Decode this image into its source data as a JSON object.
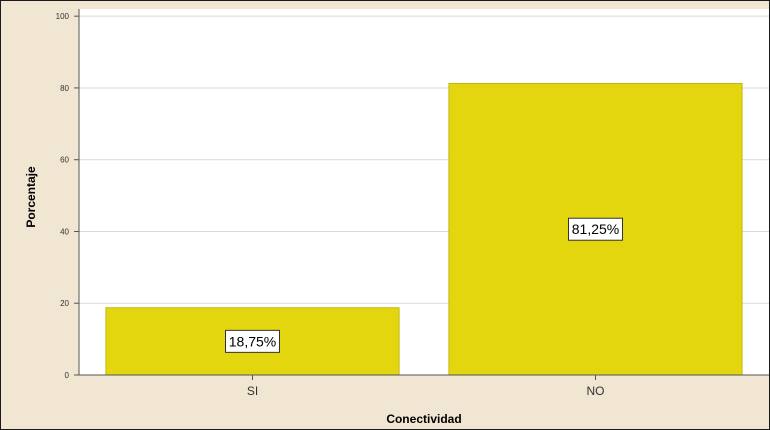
{
  "chart_data": {
    "type": "bar",
    "title": "",
    "xlabel": "Conectividad",
    "ylabel": "Porcentaje",
    "categories": [
      "SI",
      "NO"
    ],
    "values": [
      18.75,
      81.25
    ],
    "data_labels": [
      "18,75%",
      "81,25%"
    ],
    "yticks": [
      0,
      20,
      40,
      60,
      80,
      100
    ],
    "ylim": [
      0,
      102
    ],
    "grid": true,
    "legend": "none"
  },
  "colors": {
    "bar_fill": "#e3d60e",
    "bar_stroke": "#b8ad08",
    "plot_background": "#ffffff",
    "outer_background": "#f0e6d2",
    "gridline": "#d9d9d9",
    "axis_line": "#555555"
  }
}
